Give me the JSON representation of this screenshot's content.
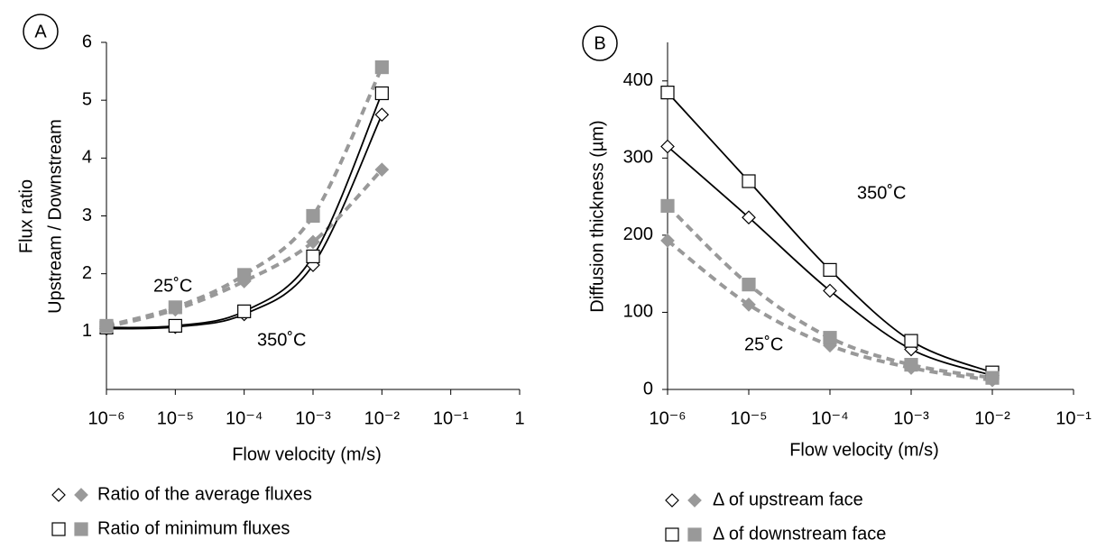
{
  "chart_data": [
    {
      "type": "scatter",
      "panel": "A",
      "xscale": "log",
      "x_label": "Flow velocity (m/s)",
      "y_label": [
        "Flux ratio",
        "Upstream / Downstream"
      ],
      "x": [
        1e-06,
        1e-05,
        0.0001,
        0.001,
        0.01
      ],
      "xlim": [
        1e-06,
        1
      ],
      "xticks": [
        {
          "value": 1e-06,
          "label": "10⁻⁶"
        },
        {
          "value": 1e-05,
          "label": "10⁻⁵"
        },
        {
          "value": 0.0001,
          "label": "10⁻⁴"
        },
        {
          "value": 0.001,
          "label": "10⁻³"
        },
        {
          "value": 0.01,
          "label": "10⁻²"
        },
        {
          "value": 0.1,
          "label": "10⁻¹"
        },
        1
      ],
      "ylim": [
        0,
        6
      ],
      "yticks": [
        1,
        2,
        3,
        4,
        5,
        6
      ],
      "groups": [
        {
          "label": "350˚C",
          "color": "#000000",
          "filled": false,
          "dashed": false
        },
        {
          "label": "25˚C",
          "color": "#999999",
          "filled": true,
          "dashed": true
        }
      ],
      "series": [
        {
          "name": "Ratio of the average fluxes",
          "marker": "diamond",
          "values": [
            [
              1.05,
              1.08,
              1.3,
              2.15,
              4.75
            ],
            [
              1.08,
              1.38,
              1.87,
              2.55,
              3.8
            ]
          ]
        },
        {
          "name": "Ratio of minimum fluxes",
          "marker": "square",
          "values": [
            [
              1.07,
              1.1,
              1.35,
              2.3,
              5.12
            ],
            [
              1.1,
              1.42,
              1.98,
              3.0,
              5.57
            ]
          ]
        }
      ]
    },
    {
      "type": "scatter",
      "panel": "B",
      "xscale": "log",
      "x_label": "Flow velocity (m/s)",
      "y_label": [
        "Diffusion thickness (µm)"
      ],
      "x": [
        1e-06,
        1e-05,
        0.0001,
        0.001,
        0.01
      ],
      "xlim": [
        1e-06,
        0.1
      ],
      "xticks": [
        {
          "value": 1e-06,
          "label": "10⁻⁶"
        },
        {
          "value": 1e-05,
          "label": "10⁻⁵"
        },
        {
          "value": 0.0001,
          "label": "10⁻⁴"
        },
        {
          "value": 0.001,
          "label": "10⁻³"
        },
        {
          "value": 0.01,
          "label": "10⁻²"
        },
        {
          "value": 0.1,
          "label": "10⁻¹"
        }
      ],
      "ylim": [
        0,
        450
      ],
      "yticks": [
        0,
        100,
        200,
        300,
        400
      ],
      "groups": [
        {
          "label": "350˚C",
          "color": "#000000",
          "filled": false,
          "dashed": false
        },
        {
          "label": "25˚C",
          "color": "#999999",
          "filled": true,
          "dashed": true
        }
      ],
      "series": [
        {
          "name": "Δ of upstream face",
          "marker": "diamond",
          "values": [
            [
              315,
              223,
              128,
              52,
              18
            ],
            [
              193,
              110,
              57,
              28,
              12
            ]
          ]
        },
        {
          "name": "Δ of downstream face",
          "marker": "square",
          "values": [
            [
              385,
              270,
              155,
              63,
              22
            ],
            [
              238,
              136,
              67,
              32,
              15
            ]
          ]
        }
      ]
    }
  ]
}
